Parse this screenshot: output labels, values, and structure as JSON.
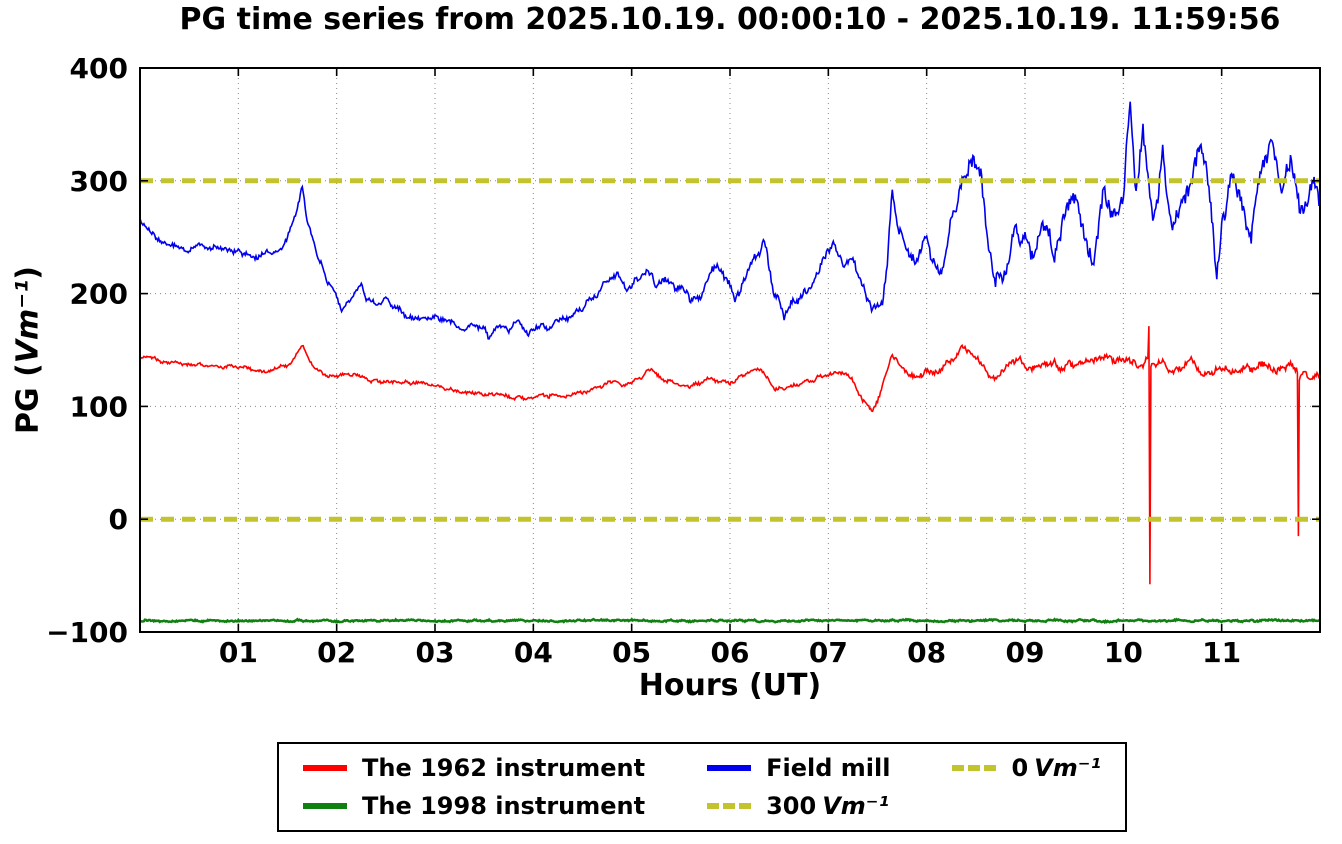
{
  "chart_data": {
    "type": "line",
    "title": "PG time series from 2025.10.19. 00:00:10 - 2025.10.19. 11:59:56",
    "xlabel": "Hours (UT)",
    "ylabel": {
      "text": "PG (Vm⁻¹)",
      "prefix": "PG (",
      "math": "Vm⁻¹",
      "suffix": ")"
    },
    "xlim": [
      0,
      12
    ],
    "ylim": [
      -100,
      400
    ],
    "grid": true,
    "legend_position": "bottom-center",
    "x_ticks": [
      {
        "value": 1,
        "label": "01"
      },
      {
        "value": 2,
        "label": "02"
      },
      {
        "value": 3,
        "label": "03"
      },
      {
        "value": 4,
        "label": "04"
      },
      {
        "value": 5,
        "label": "05"
      },
      {
        "value": 6,
        "label": "06"
      },
      {
        "value": 7,
        "label": "07"
      },
      {
        "value": 8,
        "label": "08"
      },
      {
        "value": 9,
        "label": "09"
      },
      {
        "value": 10,
        "label": "10"
      },
      {
        "value": 11,
        "label": "11"
      }
    ],
    "y_ticks": [
      {
        "value": -100,
        "label": "−100"
      },
      {
        "value": 0,
        "label": "0"
      },
      {
        "value": 100,
        "label": "100"
      },
      {
        "value": 200,
        "label": "200"
      },
      {
        "value": 300,
        "label": "300"
      },
      {
        "value": 400,
        "label": "400"
      }
    ],
    "series": [
      {
        "id": "1962-instrument",
        "name": "The 1962 instrument",
        "color": "#ff0000",
        "style": "solid",
        "width": 1.6,
        "noise": [
          [
            0,
            2.5
          ],
          [
            7,
            3
          ],
          [
            8,
            5
          ],
          [
            12,
            6
          ]
        ],
        "points": [
          [
            0,
            145
          ],
          [
            0.1,
            142
          ],
          [
            0.3,
            140
          ],
          [
            0.5,
            137
          ],
          [
            0.7,
            136
          ],
          [
            0.9,
            135
          ],
          [
            1.1,
            133
          ],
          [
            1.3,
            131
          ],
          [
            1.5,
            136
          ],
          [
            1.6,
            148
          ],
          [
            1.65,
            155
          ],
          [
            1.75,
            135
          ],
          [
            1.9,
            128
          ],
          [
            2.0,
            125
          ],
          [
            2.1,
            128
          ],
          [
            2.2,
            130
          ],
          [
            2.3,
            124
          ],
          [
            2.5,
            122
          ],
          [
            2.7,
            121
          ],
          [
            2.9,
            121
          ],
          [
            3.0,
            119
          ],
          [
            3.2,
            113
          ],
          [
            3.4,
            111
          ],
          [
            3.6,
            110
          ],
          [
            3.8,
            108
          ],
          [
            4.0,
            108
          ],
          [
            4.2,
            109
          ],
          [
            4.4,
            110
          ],
          [
            4.6,
            114
          ],
          [
            4.8,
            122
          ],
          [
            4.9,
            118
          ],
          [
            5.0,
            120
          ],
          [
            5.1,
            126
          ],
          [
            5.2,
            133
          ],
          [
            5.3,
            124
          ],
          [
            5.4,
            122
          ],
          [
            5.5,
            120
          ],
          [
            5.6,
            118
          ],
          [
            5.7,
            121
          ],
          [
            5.8,
            126
          ],
          [
            5.9,
            122
          ],
          [
            6.0,
            120
          ],
          [
            6.1,
            126
          ],
          [
            6.25,
            133
          ],
          [
            6.35,
            130
          ],
          [
            6.45,
            114
          ],
          [
            6.55,
            116
          ],
          [
            6.65,
            119
          ],
          [
            6.75,
            121
          ],
          [
            6.85,
            124
          ],
          [
            6.95,
            128
          ],
          [
            7.05,
            130
          ],
          [
            7.15,
            128
          ],
          [
            7.25,
            124
          ],
          [
            7.35,
            106
          ],
          [
            7.45,
            96
          ],
          [
            7.55,
            118
          ],
          [
            7.65,
            148
          ],
          [
            7.75,
            132
          ],
          [
            7.85,
            126
          ],
          [
            7.95,
            130
          ],
          [
            8.05,
            128
          ],
          [
            8.15,
            136
          ],
          [
            8.25,
            142
          ],
          [
            8.35,
            152
          ],
          [
            8.45,
            148
          ],
          [
            8.55,
            138
          ],
          [
            8.65,
            126
          ],
          [
            8.75,
            128
          ],
          [
            8.85,
            138
          ],
          [
            8.95,
            140
          ],
          [
            9.05,
            134
          ],
          [
            9.15,
            138
          ],
          [
            9.25,
            140
          ],
          [
            9.35,
            134
          ],
          [
            9.45,
            136
          ],
          [
            9.55,
            140
          ],
          [
            9.65,
            138
          ],
          [
            9.75,
            142
          ],
          [
            9.85,
            145
          ],
          [
            9.95,
            140
          ],
          [
            10.05,
            138
          ],
          [
            10.15,
            135
          ],
          [
            10.25,
            145
          ],
          [
            10.26,
            172
          ],
          [
            10.27,
            -55
          ],
          [
            10.28,
            140
          ],
          [
            10.4,
            138
          ],
          [
            10.5,
            132
          ],
          [
            10.6,
            136
          ],
          [
            10.7,
            140
          ],
          [
            10.8,
            132
          ],
          [
            10.9,
            130
          ],
          [
            11.0,
            134
          ],
          [
            11.1,
            132
          ],
          [
            11.2,
            130
          ],
          [
            11.3,
            134
          ],
          [
            11.4,
            138
          ],
          [
            11.5,
            134
          ],
          [
            11.6,
            132
          ],
          [
            11.7,
            136
          ],
          [
            11.77,
            132
          ],
          [
            11.78,
            -15
          ],
          [
            11.79,
            128
          ],
          [
            11.9,
            126
          ],
          [
            12,
            124
          ]
        ]
      },
      {
        "id": "1998-instrument",
        "name": "The 1998 instrument",
        "color": "#108010",
        "style": "solid",
        "width": 2.5,
        "noise": [
          [
            0,
            1.3
          ],
          [
            12,
            1.3
          ]
        ],
        "points": [
          [
            0,
            -90
          ],
          [
            12,
            -90
          ]
        ]
      },
      {
        "id": "field-mill",
        "name": "Field mill",
        "color": "#0000ee",
        "style": "solid",
        "width": 1.6,
        "noise": [
          [
            0,
            4
          ],
          [
            4.5,
            4
          ],
          [
            5,
            6
          ],
          [
            8,
            8
          ],
          [
            8.5,
            13
          ],
          [
            12,
            16
          ]
        ],
        "points": [
          [
            0,
            268
          ],
          [
            0.05,
            262
          ],
          [
            0.15,
            250
          ],
          [
            0.25,
            246
          ],
          [
            0.35,
            242
          ],
          [
            0.5,
            240
          ],
          [
            0.6,
            244
          ],
          [
            0.7,
            240
          ],
          [
            0.8,
            238
          ],
          [
            0.9,
            240
          ],
          [
            1.0,
            238
          ],
          [
            1.1,
            234
          ],
          [
            1.2,
            232
          ],
          [
            1.3,
            236
          ],
          [
            1.4,
            238
          ],
          [
            1.5,
            248
          ],
          [
            1.6,
            275
          ],
          [
            1.65,
            298
          ],
          [
            1.7,
            262
          ],
          [
            1.8,
            235
          ],
          [
            1.9,
            212
          ],
          [
            2.0,
            196
          ],
          [
            2.05,
            185
          ],
          [
            2.15,
            196
          ],
          [
            2.25,
            208
          ],
          [
            2.3,
            196
          ],
          [
            2.4,
            192
          ],
          [
            2.5,
            196
          ],
          [
            2.6,
            186
          ],
          [
            2.7,
            182
          ],
          [
            2.8,
            180
          ],
          [
            2.9,
            178
          ],
          [
            3.0,
            180
          ],
          [
            3.1,
            178
          ],
          [
            3.2,
            172
          ],
          [
            3.3,
            168
          ],
          [
            3.4,
            174
          ],
          [
            3.5,
            170
          ],
          [
            3.55,
            160
          ],
          [
            3.65,
            172
          ],
          [
            3.75,
            168
          ],
          [
            3.85,
            174
          ],
          [
            3.95,
            166
          ],
          [
            4.05,
            172
          ],
          [
            4.15,
            170
          ],
          [
            4.25,
            176
          ],
          [
            4.35,
            178
          ],
          [
            4.45,
            184
          ],
          [
            4.55,
            192
          ],
          [
            4.65,
            200
          ],
          [
            4.75,
            210
          ],
          [
            4.85,
            215
          ],
          [
            4.95,
            205
          ],
          [
            5.05,
            212
          ],
          [
            5.15,
            222
          ],
          [
            5.25,
            208
          ],
          [
            5.35,
            212
          ],
          [
            5.45,
            205
          ],
          [
            5.55,
            200
          ],
          [
            5.65,
            192
          ],
          [
            5.75,
            205
          ],
          [
            5.85,
            228
          ],
          [
            5.95,
            210
          ],
          [
            6.05,
            198
          ],
          [
            6.15,
            210
          ],
          [
            6.25,
            232
          ],
          [
            6.35,
            245
          ],
          [
            6.45,
            200
          ],
          [
            6.55,
            182
          ],
          [
            6.65,
            192
          ],
          [
            6.75,
            200
          ],
          [
            6.85,
            208
          ],
          [
            6.95,
            230
          ],
          [
            7.05,
            245
          ],
          [
            7.15,
            228
          ],
          [
            7.25,
            232
          ],
          [
            7.35,
            205
          ],
          [
            7.45,
            182
          ],
          [
            7.55,
            195
          ],
          [
            7.6,
            230
          ],
          [
            7.65,
            290
          ],
          [
            7.7,
            262
          ],
          [
            7.8,
            240
          ],
          [
            7.9,
            228
          ],
          [
            8.0,
            252
          ],
          [
            8.05,
            225
          ],
          [
            8.15,
            215
          ],
          [
            8.25,
            268
          ],
          [
            8.35,
            300
          ],
          [
            8.45,
            318
          ],
          [
            8.55,
            305
          ],
          [
            8.6,
            268
          ],
          [
            8.7,
            205
          ],
          [
            8.8,
            215
          ],
          [
            8.9,
            255
          ],
          [
            9.0,
            248
          ],
          [
            9.1,
            238
          ],
          [
            9.2,
            258
          ],
          [
            9.3,
            228
          ],
          [
            9.4,
            268
          ],
          [
            9.5,
            288
          ],
          [
            9.6,
            252
          ],
          [
            9.7,
            228
          ],
          [
            9.8,
            288
          ],
          [
            9.9,
            258
          ],
          [
            10.0,
            280
          ],
          [
            10.07,
            368
          ],
          [
            10.12,
            290
          ],
          [
            10.2,
            345
          ],
          [
            10.3,
            255
          ],
          [
            10.4,
            330
          ],
          [
            10.5,
            255
          ],
          [
            10.6,
            272
          ],
          [
            10.7,
            300
          ],
          [
            10.8,
            330
          ],
          [
            10.9,
            278
          ],
          [
            10.95,
            205
          ],
          [
            11.0,
            262
          ],
          [
            11.1,
            300
          ],
          [
            11.2,
            282
          ],
          [
            11.3,
            252
          ],
          [
            11.4,
            308
          ],
          [
            11.5,
            338
          ],
          [
            11.6,
            282
          ],
          [
            11.7,
            312
          ],
          [
            11.8,
            262
          ],
          [
            11.9,
            305
          ],
          [
            12,
            285
          ]
        ]
      }
    ],
    "ref_lines": [
      {
        "id": "300-line",
        "label": "300 Vm⁻¹",
        "value": 300,
        "color": "#c3c32d",
        "width": 5,
        "dash": "13 8"
      },
      {
        "id": "0-line",
        "label": "0 Vm⁻¹",
        "value": 0,
        "color": "#c3c32d",
        "width": 5,
        "dash": "13 8"
      }
    ],
    "legend": {
      "rows": 2,
      "columns": 3,
      "order": "column-major",
      "items": [
        {
          "id": "1962-instrument",
          "label": "The 1962 instrument",
          "color": "#ff0000",
          "dash": false
        },
        {
          "id": "1998-instrument",
          "label": "The 1998 instrument",
          "color": "#108010",
          "dash": false
        },
        {
          "id": "field-mill",
          "label": "Field mill",
          "color": "#0000ee",
          "dash": false
        },
        {
          "id": "300-line",
          "label": "300",
          "math": "Vm⁻¹",
          "color": "#c3c32d",
          "dash": true
        },
        {
          "id": "0-line",
          "label": "0",
          "math": "Vm⁻¹",
          "color": "#c3c32d",
          "dash": true
        }
      ]
    }
  }
}
